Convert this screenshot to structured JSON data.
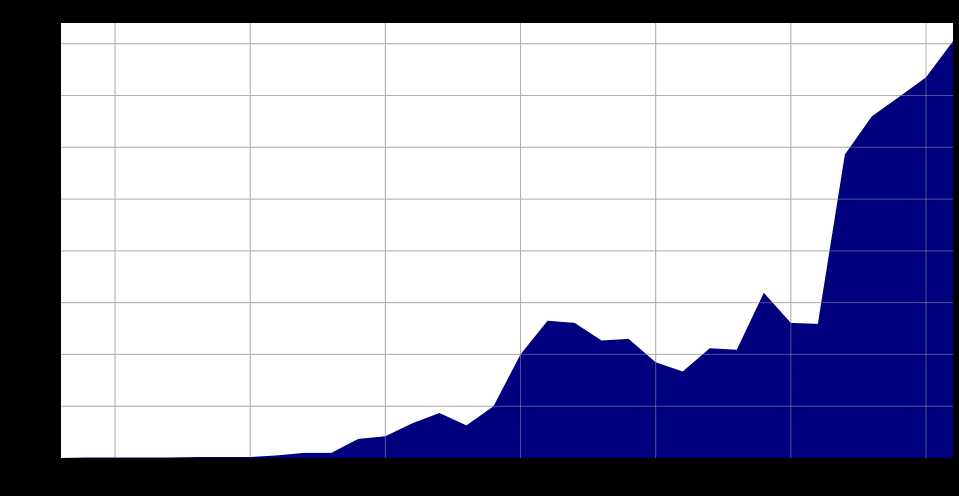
{
  "colors": {
    "background": "#000000",
    "plot_background": "#ffffff",
    "area_fill": "#00007f",
    "grid": "#b0b0b0"
  },
  "chart_data": {
    "type": "area",
    "title": "",
    "xlabel": "",
    "ylabel": "",
    "grid": true,
    "legend": "none",
    "xlim": [
      1988,
      2021
    ],
    "ylim": [
      0,
      8.4
    ],
    "x_gridlines": [
      1990,
      1995,
      2000,
      2005,
      2010,
      2015,
      2020
    ],
    "y_gridlines": [
      1,
      2,
      3,
      4,
      5,
      6,
      7,
      8
    ],
    "series": [
      {
        "x": [
          1988,
          1989,
          1990,
          1991,
          1992,
          1993,
          1994,
          1995,
          1996,
          1997,
          1998,
          1999,
          2000,
          2001,
          2002,
          2003,
          2004,
          2005,
          2006,
          2007,
          2008,
          2009,
          2010,
          2011,
          2012,
          2013,
          2014,
          2015,
          2016,
          2017,
          2018,
          2019,
          2020,
          2021
        ],
        "values": [
          0.0,
          0.01,
          0.01,
          0.01,
          0.01,
          0.02,
          0.02,
          0.02,
          0.05,
          0.1,
          0.1,
          0.37,
          0.42,
          0.67,
          0.87,
          0.63,
          1.0,
          2.0,
          2.65,
          2.61,
          2.27,
          2.3,
          1.85,
          1.67,
          2.12,
          2.09,
          3.19,
          2.61,
          2.59,
          5.86,
          6.6,
          6.97,
          7.35,
          8.05
        ]
      }
    ]
  }
}
